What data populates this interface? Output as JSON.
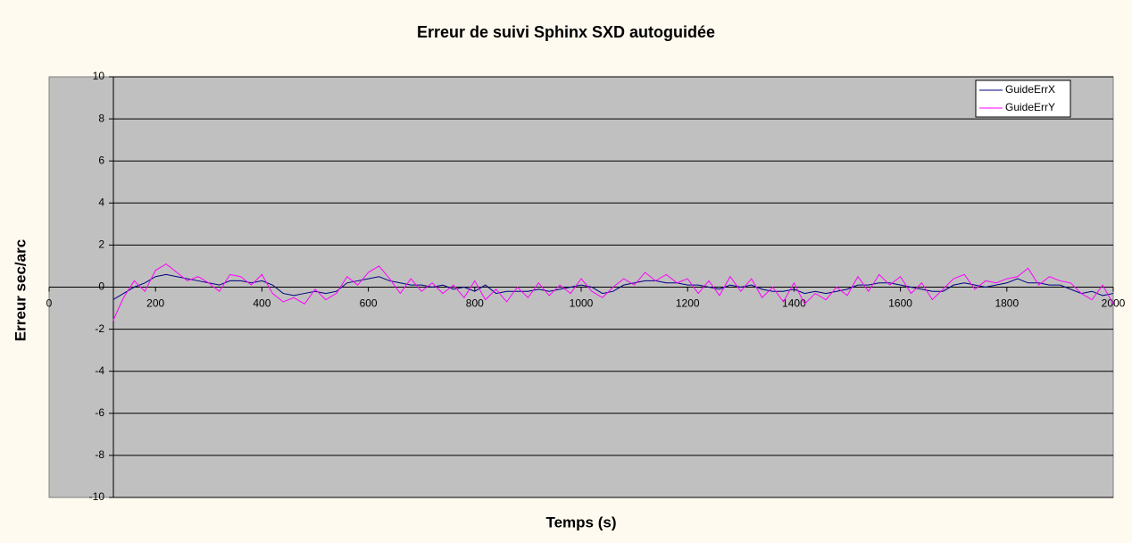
{
  "chart_data": {
    "type": "line",
    "title": "Erreur de suivi Sphinx SXD autoguidée",
    "xlabel": "Temps (s)",
    "ylabel": "Erreur sec/arc",
    "x": [
      120,
      140,
      160,
      180,
      200,
      220,
      240,
      260,
      280,
      300,
      320,
      340,
      360,
      380,
      400,
      420,
      440,
      460,
      480,
      500,
      520,
      540,
      560,
      580,
      600,
      620,
      640,
      660,
      680,
      700,
      720,
      740,
      760,
      780,
      800,
      820,
      840,
      860,
      880,
      900,
      920,
      940,
      960,
      980,
      1000,
      1020,
      1040,
      1060,
      1080,
      1100,
      1120,
      1140,
      1160,
      1180,
      1200,
      1220,
      1240,
      1260,
      1280,
      1300,
      1320,
      1340,
      1360,
      1380,
      1400,
      1420,
      1440,
      1460,
      1480,
      1500,
      1520,
      1540,
      1560,
      1580,
      1600,
      1620,
      1640,
      1660,
      1680,
      1700,
      1720,
      1740,
      1760,
      1780,
      1800,
      1820,
      1840,
      1860,
      1880,
      1900,
      1920,
      1940,
      1960,
      1980,
      2000
    ],
    "series": [
      {
        "name": "GuideErrX",
        "color": "#000080",
        "values": [
          -0.6,
          -0.3,
          0,
          0.2,
          0.5,
          0.6,
          0.5,
          0.4,
          0.3,
          0.2,
          0.1,
          0.3,
          0.3,
          0.2,
          0.3,
          0.1,
          -0.3,
          -0.4,
          -0.3,
          -0.2,
          -0.3,
          -0.2,
          0.2,
          0.3,
          0.4,
          0.5,
          0.3,
          0.2,
          0.1,
          0.1,
          0,
          0.1,
          -0.1,
          0,
          -0.2,
          0.1,
          -0.3,
          -0.2,
          -0.2,
          -0.2,
          -0.1,
          -0.2,
          -0.1,
          0,
          0.1,
          0,
          -0.3,
          -0.2,
          0.1,
          0.2,
          0.3,
          0.3,
          0.2,
          0.2,
          0.1,
          0.1,
          0,
          -0.1,
          0.1,
          0,
          0.1,
          -0.1,
          -0.2,
          -0.2,
          -0.1,
          -0.3,
          -0.2,
          -0.3,
          -0.2,
          -0.1,
          0.1,
          0.1,
          0.2,
          0.2,
          0.1,
          0,
          -0.1,
          -0.2,
          -0.2,
          0.1,
          0.2,
          0.1,
          0,
          0.1,
          0.2,
          0.4,
          0.2,
          0.2,
          0.1,
          0.1,
          -0.1,
          -0.3,
          -0.2,
          -0.4,
          -0.3
        ]
      },
      {
        "name": "GuideErrY",
        "color": "#ff00ff",
        "values": [
          -1.6,
          -0.5,
          0.3,
          -0.2,
          0.8,
          1.1,
          0.7,
          0.3,
          0.5,
          0.2,
          -0.2,
          0.6,
          0.5,
          0.1,
          0.6,
          -0.3,
          -0.7,
          -0.5,
          -0.8,
          -0.1,
          -0.6,
          -0.3,
          0.5,
          0.1,
          0.7,
          1.0,
          0.4,
          -0.3,
          0.4,
          -0.2,
          0.2,
          -0.3,
          0.1,
          -0.5,
          0.3,
          -0.6,
          -0.1,
          -0.7,
          0,
          -0.5,
          0.2,
          -0.4,
          0.1,
          -0.3,
          0.4,
          -0.2,
          -0.5,
          0,
          0.4,
          0.1,
          0.7,
          0.3,
          0.6,
          0.2,
          0.4,
          -0.3,
          0.3,
          -0.4,
          0.5,
          -0.2,
          0.4,
          -0.5,
          0,
          -0.7,
          0.2,
          -0.8,
          -0.3,
          -0.6,
          0,
          -0.4,
          0.5,
          -0.2,
          0.6,
          0.1,
          0.5,
          -0.3,
          0.2,
          -0.6,
          -0.1,
          0.4,
          0.6,
          -0.1,
          0.3,
          0.2,
          0.4,
          0.5,
          0.9,
          0.1,
          0.5,
          0.3,
          0.2,
          -0.3,
          -0.6,
          0.1,
          -0.8
        ]
      }
    ],
    "xlim": [
      0,
      2000
    ],
    "xticks": [
      0,
      200,
      400,
      600,
      800,
      1000,
      1200,
      1400,
      1600,
      1800,
      2000
    ],
    "ylim": [
      -10,
      10
    ],
    "yticks": [
      10,
      8,
      6,
      4,
      2,
      0,
      -2,
      -4,
      -6,
      -8,
      -10
    ],
    "grid": true,
    "legend": "top-right"
  }
}
